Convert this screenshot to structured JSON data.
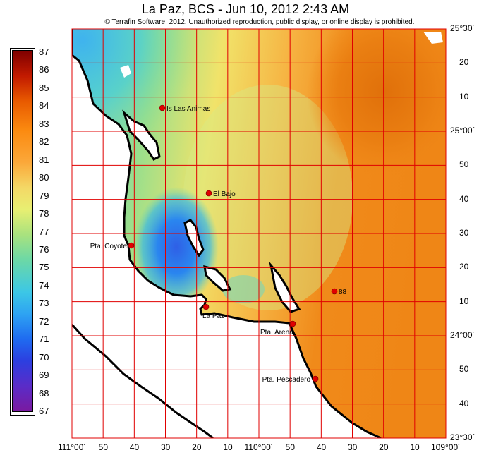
{
  "header": {
    "title": "La Paz, BCS - Jun 10, 2012 2:43 AM",
    "copyright": "© Terrafin Software,  2012.  Unauthorized reproduction, public display, or online display is prohibited."
  },
  "legend": {
    "labels": [
      "87",
      "86",
      "85",
      "84",
      "83",
      "82",
      "81",
      "80",
      "79",
      "78",
      "77",
      "76",
      "75",
      "74",
      "73",
      "72",
      "71",
      "70",
      "69",
      "68",
      "67"
    ],
    "max": 87,
    "min": 67
  },
  "axes": {
    "lat_labels": [
      "25°30´",
      "20",
      "10",
      "25°00´",
      "50",
      "40",
      "30",
      "20",
      "10",
      "24°00´",
      "50",
      "40",
      "23°30´"
    ],
    "lon_labels": [
      "111°00´",
      "50",
      "40",
      "30",
      "20",
      "10",
      "110°00´",
      "50",
      "40",
      "30",
      "20",
      "10",
      "109°00´"
    ]
  },
  "places": [
    {
      "label": "Is Las Animas",
      "marker": "marker-is-las-animas"
    },
    {
      "label": "El Bajo",
      "marker": "marker-el-bajo"
    },
    {
      "label": "Pta. Coyote",
      "marker": "marker-pta-coyote"
    },
    {
      "label": "88",
      "marker": "marker-88"
    },
    {
      "label": "La Paz",
      "marker": "marker-la-paz"
    },
    {
      "label": "Pta. Arena",
      "marker": "marker-pta-arena"
    },
    {
      "label": "Pta. Pescadero",
      "marker": "marker-pta-pescadero"
    }
  ],
  "colors": {
    "grid": "#e00000",
    "marker": "#e00000",
    "coast": "#000000",
    "land": "#ffffff"
  }
}
